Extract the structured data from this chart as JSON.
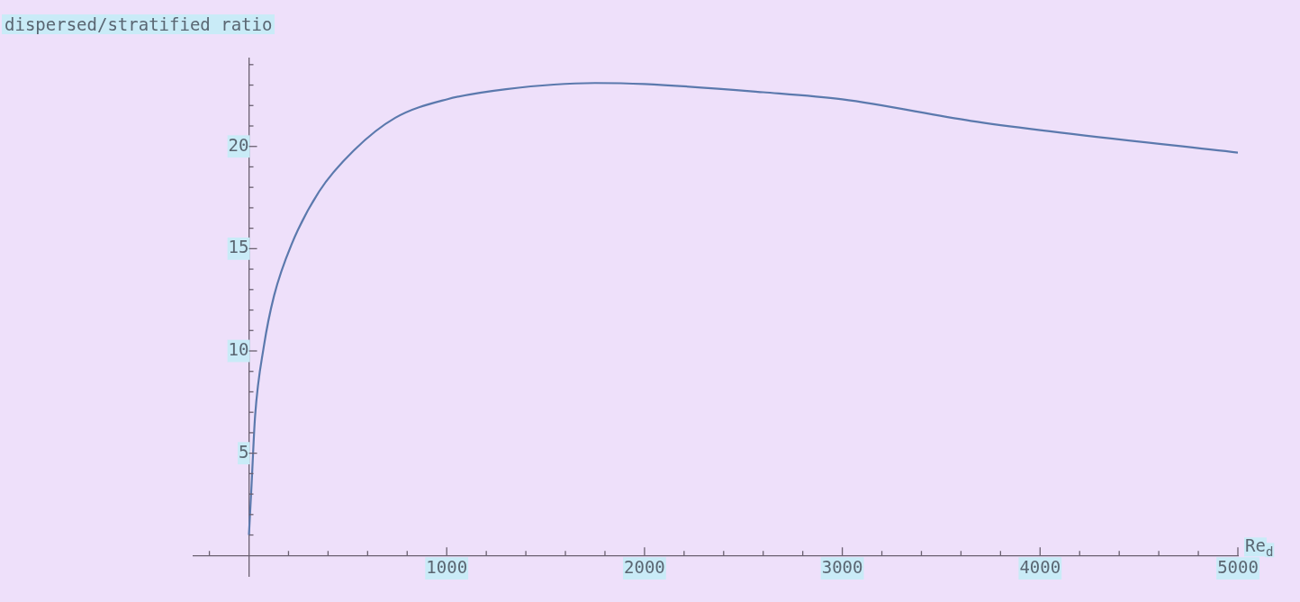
{
  "chart_data": {
    "type": "line",
    "ylabel": "dispersed/stratified ratio",
    "xlabel": "Re$_{d}$",
    "x": [
      0,
      13,
      31,
      75,
      127,
      215,
      355,
      530,
      740,
      1000,
      1300,
      1750,
      2000,
      2600,
      3000,
      3650,
      4000,
      5000
    ],
    "series": [
      {
        "color": "#5b79ad",
        "values": [
          1,
          3.4,
          6.8,
          10.2,
          12.7,
          15.2,
          17.8,
          19.8,
          21.4,
          22.3,
          22.8,
          23.1,
          23.05,
          22.65,
          22.3,
          21.25,
          20.8,
          19.7
        ]
      }
    ],
    "xlim": [
      -280,
      5000
    ],
    "ylim": [
      -1,
      24.3
    ],
    "xticks": [
      {
        "value": -200,
        "label": null
      },
      {
        "value": 200,
        "label": null
      },
      {
        "value": 400,
        "label": null
      },
      {
        "value": 600,
        "label": null
      },
      {
        "value": 800,
        "label": null
      },
      1000,
      {
        "value": 1200,
        "label": null
      },
      {
        "value": 1400,
        "label": null
      },
      {
        "value": 1600,
        "label": null
      },
      {
        "value": 1800,
        "label": null
      },
      2000,
      {
        "value": 2200,
        "label": null
      },
      {
        "value": 2400,
        "label": null
      },
      {
        "value": 2600,
        "label": null
      },
      {
        "value": 2800,
        "label": null
      },
      3000,
      {
        "value": 3200,
        "label": null
      },
      {
        "value": 3400,
        "label": null
      },
      {
        "value": 3600,
        "label": null
      },
      {
        "value": 3800,
        "label": null
      },
      4000,
      {
        "value": 4200,
        "label": null
      },
      {
        "value": 4400,
        "label": null
      },
      {
        "value": 4600,
        "label": null
      },
      {
        "value": 4800,
        "label": null
      },
      5000
    ],
    "yticks": [
      {
        "value": 1,
        "label": null
      },
      {
        "value": 2,
        "label": null
      },
      {
        "value": 3,
        "label": null
      },
      {
        "value": 4,
        "label": null
      },
      5,
      {
        "value": 6,
        "label": null
      },
      {
        "value": 7,
        "label": null
      },
      {
        "value": 8,
        "label": null
      },
      {
        "value": 9,
        "label": null
      },
      10,
      {
        "value": 11,
        "label": null
      },
      {
        "value": 12,
        "label": null
      },
      {
        "value": 13,
        "label": null
      },
      {
        "value": 14,
        "label": null
      },
      15,
      {
        "value": 16,
        "label": null
      },
      {
        "value": 17,
        "label": null
      },
      {
        "value": 18,
        "label": null
      },
      {
        "value": 19,
        "label": null
      },
      20,
      {
        "value": 21,
        "label": null
      },
      {
        "value": 22,
        "label": null
      },
      {
        "value": 23,
        "label": null
      },
      {
        "value": 24,
        "label": null
      }
    ],
    "grid": false,
    "legend": false,
    "marker": "none",
    "line_style": "solid"
  }
}
